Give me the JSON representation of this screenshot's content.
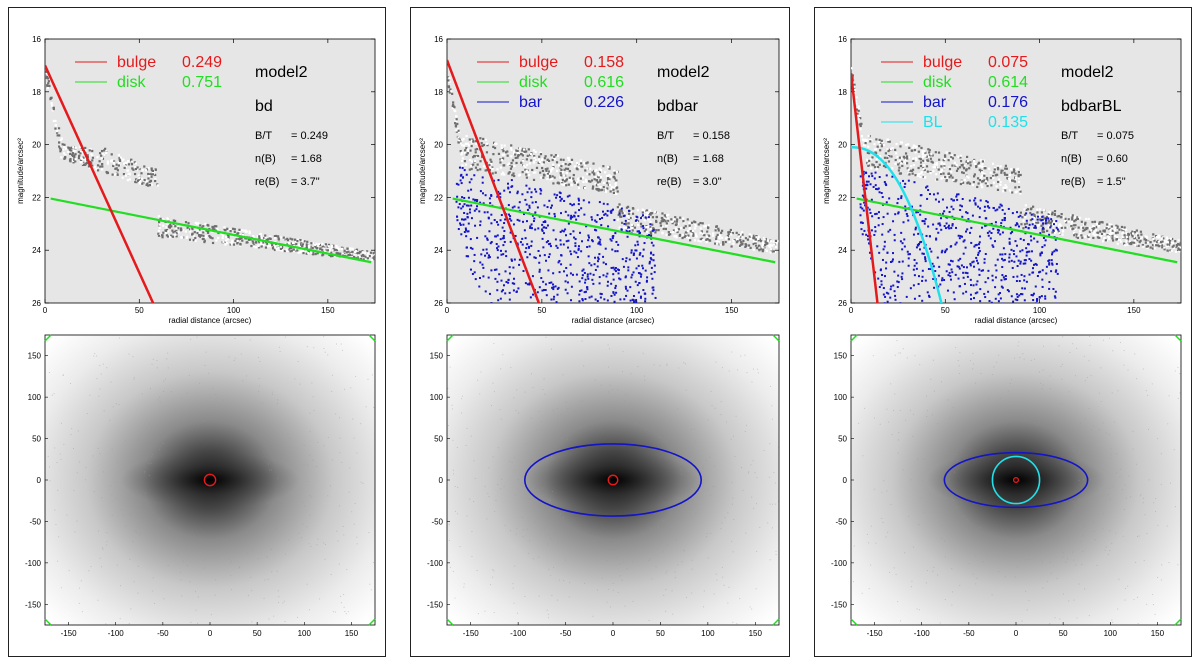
{
  "colors": {
    "bulge": "#e41a1c",
    "disk": "#22dd22",
    "bar": "#1414c8",
    "BL": "#22e0ea",
    "data": "#6e6e6e",
    "plot_bg": "#e6e6e6"
  },
  "chart_data": [
    {
      "type": "scatter",
      "title": "",
      "xlabel": "radial distance (arcsec)",
      "ylabel": "magnitude/arcsec²",
      "xlim": [
        0,
        175
      ],
      "ylim": [
        26,
        16
      ],
      "xticks": [
        "0",
        "50",
        "100",
        "150"
      ],
      "yticks": [
        "16",
        "18",
        "20",
        "22",
        "24",
        "26"
      ],
      "model": "model2",
      "variant": "bd",
      "legend": [
        {
          "name": "bulge",
          "value": "0.249",
          "color": "bulge"
        },
        {
          "name": "disk",
          "value": "0.751",
          "color": "disk"
        }
      ],
      "stats": [
        {
          "label": "B/T",
          "value": "= 0.249"
        },
        {
          "label": "n(B)",
          "value": "= 1.68"
        },
        {
          "label": "re(B)",
          "value": "= 3.7\""
        }
      ],
      "components": {
        "bulge": {
          "mu0": 17.0,
          "k": 0.157,
          "n": 1.0
        },
        "disk": {
          "mu0": 22.0,
          "slope": 0.0142
        },
        "bar": null,
        "BL": null
      },
      "image": {
        "axis_ticks": [
          "-150",
          "-100",
          "-50",
          "0",
          "50",
          "100",
          "150"
        ],
        "range": [
          -175,
          175
        ],
        "bulge_ellipse": {
          "a": 6,
          "b": 6
        },
        "bar_ellipse": null,
        "BL_circle": null
      }
    },
    {
      "type": "scatter",
      "title": "",
      "xlabel": "radial distance (arcsec)",
      "ylabel": "magnitude/arcsec²",
      "xlim": [
        0,
        175
      ],
      "ylim": [
        26,
        16
      ],
      "xticks": [
        "0",
        "50",
        "100",
        "150"
      ],
      "yticks": [
        "16",
        "18",
        "20",
        "22",
        "24",
        "26"
      ],
      "model": "model2",
      "variant": "bdbar",
      "legend": [
        {
          "name": "bulge",
          "value": "0.158",
          "color": "bulge"
        },
        {
          "name": "disk",
          "value": "0.616",
          "color": "disk"
        },
        {
          "name": "bar",
          "value": "0.226",
          "color": "bar"
        }
      ],
      "stats": [
        {
          "label": "B/T",
          "value": "= 0.158"
        },
        {
          "label": "n(B)",
          "value": "= 1.68"
        },
        {
          "label": "re(B)",
          "value": "= 3.0\""
        }
      ],
      "components": {
        "bulge": {
          "mu0": 16.8,
          "k": 0.19,
          "n": 1.0
        },
        "disk": {
          "mu0": 22.0,
          "slope": 0.0142
        },
        "bar": {
          "mu0": 20.7,
          "rmax": 110
        },
        "BL": null
      },
      "image": {
        "axis_ticks": [
          "-150",
          "-100",
          "-50",
          "0",
          "50",
          "100",
          "150"
        ],
        "range": [
          -175,
          175
        ],
        "bulge_ellipse": {
          "a": 5,
          "b": 5
        },
        "bar_ellipse": {
          "a": 93,
          "b": 38
        },
        "BL_circle": null
      }
    },
    {
      "type": "scatter",
      "title": "",
      "xlabel": "radial distance (arcsec)",
      "ylabel": "magnitude/arcsec²",
      "xlim": [
        0,
        175
      ],
      "ylim": [
        26,
        16
      ],
      "xticks": [
        "0",
        "50",
        "100",
        "150"
      ],
      "yticks": [
        "16",
        "18",
        "20",
        "22",
        "24",
        "26"
      ],
      "model": "model2",
      "variant": "bdbarBL",
      "legend": [
        {
          "name": "bulge",
          "value": "0.075",
          "color": "bulge"
        },
        {
          "name": "disk",
          "value": "0.614",
          "color": "disk"
        },
        {
          "name": "bar",
          "value": "0.176",
          "color": "bar"
        },
        {
          "name": "BL",
          "value": "0.135",
          "color": "BL"
        }
      ],
      "stats": [
        {
          "label": "B/T",
          "value": "= 0.075"
        },
        {
          "label": "n(B)",
          "value": "= 0.60"
        },
        {
          "label": "re(B)",
          "value": "= 1.5\""
        }
      ],
      "components": {
        "bulge": {
          "mu0": 17.3,
          "k": 0.62,
          "n": 1.0
        },
        "disk": {
          "mu0": 22.0,
          "slope": 0.0142
        },
        "bar": {
          "mu0": 20.8,
          "rmax": 110
        },
        "BL": {
          "mu0": 20.1,
          "rmax": 50
        }
      },
      "image": {
        "axis_ticks": [
          "-150",
          "-100",
          "-50",
          "0",
          "50",
          "100",
          "150"
        ],
        "range": [
          -175,
          175
        ],
        "bulge_ellipse": {
          "a": 2.5,
          "b": 2.5
        },
        "bar_ellipse": {
          "a": 76,
          "b": 29
        },
        "BL_circle": {
          "r": 25
        }
      }
    }
  ]
}
